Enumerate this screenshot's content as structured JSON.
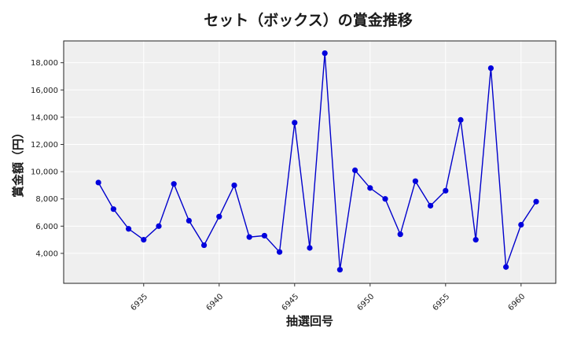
{
  "chart_data": {
    "type": "line",
    "title": "セット（ボックス）の賞金推移",
    "xlabel": "抽選回号",
    "ylabel": "賞金額（円）",
    "xlim": [
      6929.7,
      6962.3
    ],
    "ylim": [
      1800,
      19600
    ],
    "x_ticks": [
      6935,
      6940,
      6945,
      6950,
      6955,
      6960
    ],
    "y_ticks": [
      4000,
      6000,
      8000,
      10000,
      12000,
      14000,
      16000,
      18000
    ],
    "y_tick_labels": [
      "4,000",
      "6,000",
      "8,000",
      "10,000",
      "12,000",
      "14,000",
      "16,000",
      "18,000"
    ],
    "grid": true,
    "colors": {
      "line": "#0000cc",
      "marker": "#0000dd",
      "plot_bg": "#efefef",
      "grid": "#ffffff"
    },
    "series": [
      {
        "x": [
          6932,
          6933,
          6934,
          6935,
          6936,
          6937,
          6938,
          6939,
          6940,
          6941,
          6942,
          6943,
          6944,
          6945,
          6946,
          6947,
          6948,
          6949,
          6950,
          6951,
          6952,
          6953,
          6954,
          6955,
          6956,
          6957,
          6958,
          6959,
          6960,
          6961
        ],
        "values": [
          9200,
          7250,
          5800,
          5000,
          6000,
          9100,
          6400,
          4600,
          6700,
          9000,
          5200,
          5300,
          4100,
          13600,
          4400,
          18700,
          2800,
          10100,
          8800,
          8000,
          5400,
          9300,
          7500,
          8600,
          13800,
          5000,
          17600,
          3000,
          6100,
          7800
        ]
      }
    ]
  }
}
